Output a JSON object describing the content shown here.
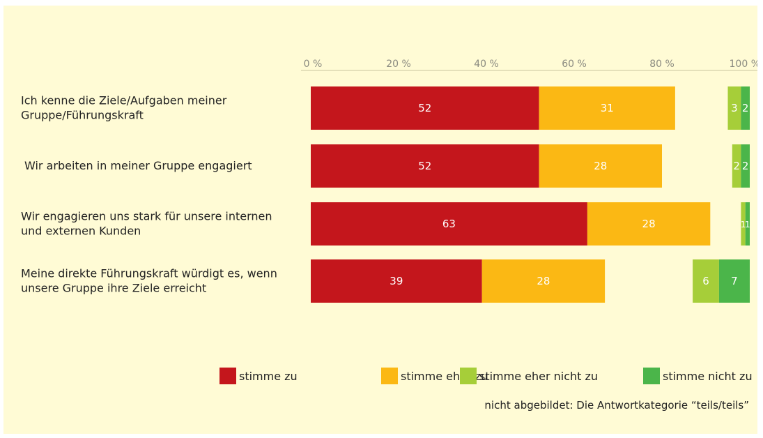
{
  "chart_data": {
    "type": "bar",
    "orientation": "horizontal",
    "stacked": true,
    "xlim": [
      0,
      100
    ],
    "ticks": [
      "0 %",
      "20 %",
      "40 %",
      "60 %",
      "80 %",
      "100 %"
    ],
    "tick_values": [
      0,
      20,
      40,
      60,
      80,
      100
    ],
    "categories": [
      [
        "Ich kenne die Ziele/Aufgaben meiner",
        "Gruppe/Führungskraft"
      ],
      [
        "Wir arbeiten in meiner Gruppe engagiert"
      ],
      [
        "Wir engagieren uns stark für unsere internen",
        "und externen Kunden"
      ],
      [
        "Meine direkte Führungskraft würdigt es, wenn",
        "unsere Gruppe ihre Ziele erreicht"
      ]
    ],
    "series": [
      {
        "name": "stimme zu",
        "color": "#c4161c",
        "values": [
          52,
          52,
          63,
          39
        ],
        "labels": [
          "52",
          "52",
          "63",
          "39"
        ]
      },
      {
        "name": "stimme eher zu",
        "color": "#fbb814",
        "values": [
          31,
          28,
          28,
          28
        ],
        "labels": [
          "31",
          "28",
          "28",
          "28"
        ]
      },
      {
        "name": "stimme eher nicht zu",
        "color": "#a6ce39",
        "values": [
          3,
          2,
          1,
          6
        ],
        "labels": [
          "3",
          "2",
          "1",
          "6"
        ]
      },
      {
        "name": "stimme nicht zu",
        "color": "#4bb54a",
        "values": [
          2,
          2,
          1,
          7
        ],
        "labels": [
          "2",
          "2",
          "1",
          "7"
        ]
      }
    ],
    "legend_position": "bottom-right",
    "grid": false,
    "note": "nicht abgebildet: Die Antwortkategorie “teils/teils”"
  }
}
